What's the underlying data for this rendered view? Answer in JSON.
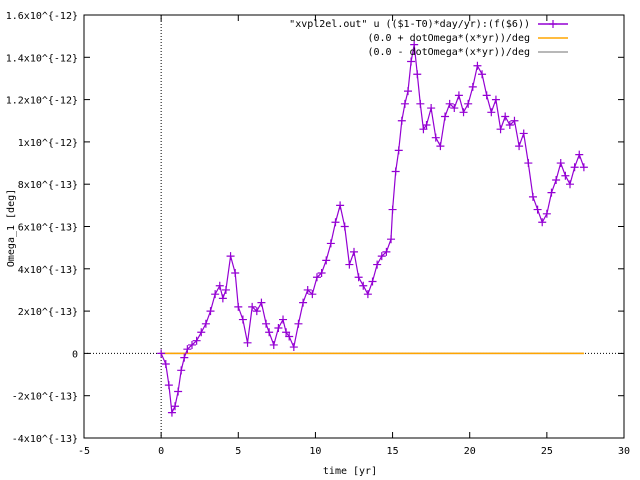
{
  "chart_data": {
    "type": "line",
    "title": "",
    "xlabel": "time [yr]",
    "ylabel": "Omega_1 [deg]",
    "xlim": [
      -5,
      30
    ],
    "ylim": [
      -4e-13,
      1.6e-12
    ],
    "grid": false,
    "legend_position": "top-right",
    "x_ticks": [
      {
        "value": -5,
        "label": "-5"
      },
      {
        "value": 0,
        "label": "0"
      },
      {
        "value": 5,
        "label": "5"
      },
      {
        "value": 10,
        "label": "10"
      },
      {
        "value": 15,
        "label": "15"
      },
      {
        "value": 20,
        "label": "20"
      },
      {
        "value": 25,
        "label": "25"
      },
      {
        "value": 30,
        "label": "30"
      }
    ],
    "y_ticks": [
      {
        "value": -4e-13,
        "label": "-4x10^{-13}"
      },
      {
        "value": -2e-13,
        "label": "-2x10^{-13}"
      },
      {
        "value": 0,
        "label": "0"
      },
      {
        "value": 2e-13,
        "label": "2x10^{-13}"
      },
      {
        "value": 4e-13,
        "label": "4x10^{-13}"
      },
      {
        "value": 6e-13,
        "label": "6x10^{-13}"
      },
      {
        "value": 8e-13,
        "label": "8x10^{-13}"
      },
      {
        "value": 1e-12,
        "label": "1x10^{-12}"
      },
      {
        "value": 1.2e-12,
        "label": "1.2x10^{-12}"
      },
      {
        "value": 1.4e-12,
        "label": "1.4x10^{-12}"
      },
      {
        "value": 1.6e-12,
        "label": "1.6x10^{-12}"
      }
    ],
    "series": [
      {
        "name": "\"xvpl2el.out\" u (($1-T0)*day/yr):(f($6))",
        "color": "#9400d3",
        "style": "linespoints",
        "x": [
          0,
          0.3,
          0.5,
          0.7,
          0.9,
          1.1,
          1.3,
          1.5,
          1.7,
          2.0,
          2.3,
          2.6,
          2.9,
          3.2,
          3.5,
          3.8,
          4.0,
          4.2,
          4.5,
          4.8,
          5.0,
          5.3,
          5.6,
          5.9,
          6.2,
          6.5,
          6.8,
          7.0,
          7.3,
          7.6,
          7.9,
          8.1,
          8.3,
          8.6,
          8.9,
          9.2,
          9.5,
          9.8,
          10.1,
          10.4,
          10.7,
          11.0,
          11.3,
          11.6,
          11.9,
          12.2,
          12.5,
          12.8,
          13.1,
          13.4,
          13.7,
          14.0,
          14.3,
          14.6,
          14.9,
          15.0,
          15.2,
          15.4,
          15.6,
          15.8,
          16.0,
          16.2,
          16.4,
          16.6,
          16.8,
          17.0,
          17.2,
          17.5,
          17.8,
          18.1,
          18.4,
          18.7,
          19.0,
          19.3,
          19.6,
          19.9,
          20.2,
          20.5,
          20.8,
          21.1,
          21.4,
          21.7,
          22.0,
          22.3,
          22.6,
          22.9,
          23.2,
          23.5,
          23.8,
          24.1,
          24.4,
          24.7,
          25.0,
          25.3,
          25.6,
          25.9,
          26.2,
          26.5,
          26.8,
          27.1,
          27.4
        ],
        "y": [
          0,
          -5e-14,
          -1.5e-13,
          -2.8e-13,
          -2.5e-13,
          -1.8e-13,
          -8e-14,
          -2e-14,
          2e-14,
          4e-14,
          6e-14,
          1e-13,
          1.4e-13,
          2e-13,
          2.8e-13,
          3.2e-13,
          2.6e-13,
          3e-13,
          4.6e-13,
          3.8e-13,
          2.2e-13,
          1.6e-13,
          5e-14,
          2.2e-13,
          2e-13,
          2.4e-13,
          1.4e-13,
          1e-13,
          4e-14,
          1.2e-13,
          1.6e-13,
          1e-13,
          8e-14,
          3e-14,
          1.4e-13,
          2.4e-13,
          3e-13,
          2.8e-13,
          3.6e-13,
          3.8e-13,
          4.4e-13,
          5.2e-13,
          6.2e-13,
          7e-13,
          6e-13,
          4.2e-13,
          4.8e-13,
          3.6e-13,
          3.2e-13,
          2.8e-13,
          3.4e-13,
          4.2e-13,
          4.6e-13,
          4.8e-13,
          5.4e-13,
          6.8e-13,
          8.6e-13,
          9.6e-13,
          1.1e-12,
          1.18e-12,
          1.24e-12,
          1.38e-12,
          1.46e-12,
          1.32e-12,
          1.18e-12,
          1.06e-12,
          1.08e-12,
          1.16e-12,
          1.02e-12,
          9.8e-13,
          1.12e-12,
          1.18e-12,
          1.16e-12,
          1.22e-12,
          1.14e-12,
          1.18e-12,
          1.26e-12,
          1.36e-12,
          1.32e-12,
          1.22e-12,
          1.14e-12,
          1.2e-12,
          1.06e-12,
          1.12e-12,
          1.08e-12,
          1.1e-12,
          9.8e-13,
          1.04e-12,
          9e-13,
          7.4e-13,
          6.8e-13,
          6.2e-13,
          6.6e-13,
          7.6e-13,
          8.2e-13,
          9e-13,
          8.4e-13,
          8e-13,
          8.8e-13,
          9.4e-13,
          8.8e-13
        ]
      },
      {
        "name": "(0.0 + dotOmega*(x*yr))/deg",
        "color": "#ffa500",
        "style": "line",
        "x": [
          0,
          27.4
        ],
        "y": [
          0,
          0
        ]
      },
      {
        "name": "(0.0 - dotOmega*(x*yr))/deg",
        "color": "#a0a0a0",
        "style": "line",
        "x": [
          0,
          27.4
        ],
        "y": [
          0,
          0
        ]
      }
    ]
  }
}
